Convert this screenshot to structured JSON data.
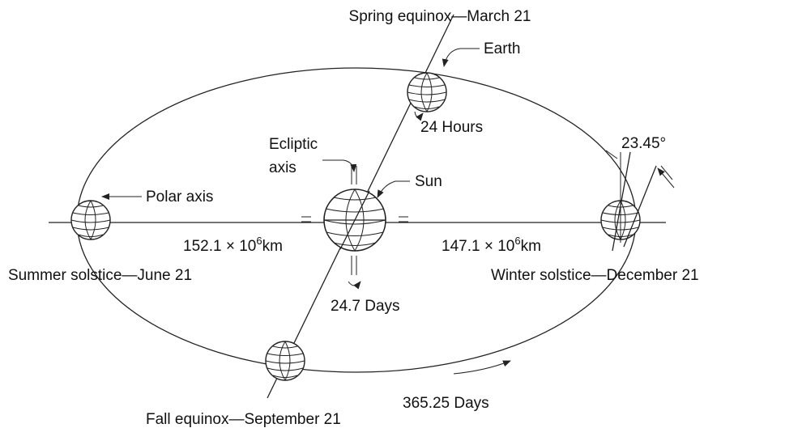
{
  "labels": {
    "spring_equinox": "Spring equinox—March 21",
    "earth": "Earth",
    "earth_rotation": "24 Hours",
    "ecliptic_axis": [
      "Ecliptic",
      "axis"
    ],
    "sun": "Sun",
    "tilt": "23.45°",
    "polar_axis": "Polar axis",
    "summer_distance": {
      "base": "152.1 × 10",
      "exponent": "6",
      "unit": "km"
    },
    "winter_distance": {
      "base": "147.1 × 10",
      "exponent": "6",
      "unit": "km"
    },
    "summer_solstice": "Summer solstice—June 21",
    "winter_solstice": "Winter solstice—December 21",
    "sun_rotation": "24.7 Days",
    "fall_equinox": "Fall equinox—September 21",
    "orbit_period": "365.25 Days"
  }
}
